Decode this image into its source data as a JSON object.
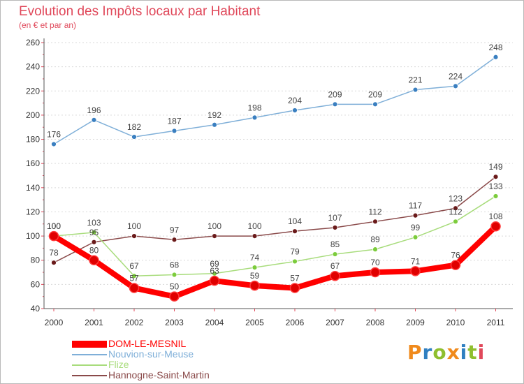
{
  "header": {
    "title": "Evolution des Impôts locaux par Habitant",
    "subtitle": "(en € et par an)"
  },
  "logo": {
    "text": "Proxiti",
    "letters": [
      {
        "ch": "P",
        "color": "#f08a1c"
      },
      {
        "ch": "r",
        "color": "#2f7fc1"
      },
      {
        "ch": "o",
        "color": "#8fbf2f"
      },
      {
        "ch": "x",
        "color": "#f08a1c"
      },
      {
        "ch": "i",
        "color": "#2f7fc1"
      },
      {
        "ch": "t",
        "color": "#8fbf2f"
      },
      {
        "ch": "i",
        "color": "#e0485a"
      }
    ]
  },
  "colors": {
    "title": "#e0485a",
    "axis": "#555555",
    "grid": "#d9d9d9",
    "tick": "#e0485a",
    "tick_label": "#333333"
  },
  "chart_data": {
    "type": "line",
    "title": "Evolution des Impôts locaux par Habitant",
    "subtitle": "(en € et par an)",
    "x": [
      "2000",
      "2001",
      "2002",
      "2003",
      "2004",
      "2005",
      "2006",
      "2007",
      "2008",
      "2009",
      "2010",
      "2011"
    ],
    "ylim": [
      40,
      260
    ],
    "yticks": [
      40,
      60,
      80,
      100,
      120,
      140,
      160,
      180,
      200,
      220,
      240,
      260
    ],
    "grid": "horizontal dotted",
    "legend_position": "bottom-left",
    "series": [
      {
        "name": "DOM-LE-MESNIL",
        "values": [
          100,
          80,
          57,
          50,
          63,
          59,
          57,
          67,
          70,
          71,
          76,
          108
        ],
        "color": "#ff0000",
        "marker": "#e00000",
        "width": "thick",
        "labels": true
      },
      {
        "name": "Nouvion-sur-Meuse",
        "values": [
          176,
          196,
          182,
          187,
          192,
          198,
          204,
          209,
          209,
          221,
          224,
          248
        ],
        "color": "#7fafd8",
        "marker": "#3a7fc0",
        "width": "thin",
        "labels": true
      },
      {
        "name": "Flize",
        "values": [
          100,
          103,
          67,
          68,
          69,
          74,
          79,
          85,
          89,
          99,
          112,
          133
        ],
        "color": "#a8dc7c",
        "marker": "#7ccc3c",
        "width": "thin",
        "labels": true
      },
      {
        "name": "Hannogne-Saint-Martin",
        "values": [
          78,
          95,
          100,
          97,
          100,
          100,
          104,
          107,
          112,
          117,
          123,
          149
        ],
        "color": "#8a4a4a",
        "marker": "#6a1a1a",
        "width": "thin",
        "labels": true
      }
    ]
  }
}
